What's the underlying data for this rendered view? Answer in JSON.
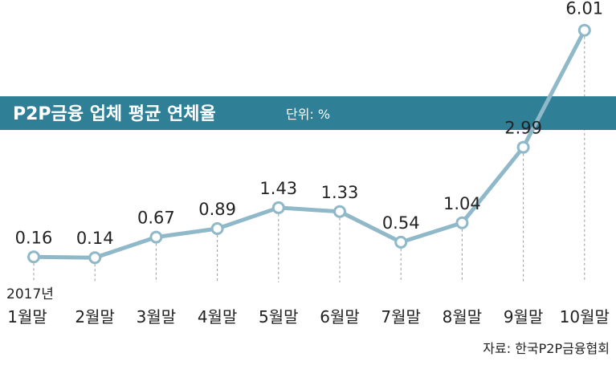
{
  "title": "P2P금융 업체 평균 연체율",
  "unit": "단위: %",
  "source": "자료: 한국P2P금융협회",
  "year_label": "2017년",
  "colors": {
    "title_bar": "#2f7f96",
    "line": "#8fb9c9",
    "marker_stroke": "#8fb9c9",
    "marker_fill": "#ffffff",
    "guide": "#9a9a9a"
  },
  "chart_data": {
    "type": "line",
    "title": "P2P금융 업체 평균 연체율",
    "unit": "%",
    "categories": [
      "1월말",
      "2월말",
      "3월말",
      "4월말",
      "5월말",
      "6월말",
      "7월말",
      "8월말",
      "9월말",
      "10월말"
    ],
    "series": [
      {
        "values": [
          0.16,
          0.14,
          0.67,
          0.89,
          1.43,
          1.33,
          0.54,
          1.04,
          2.99,
          6.01
        ]
      }
    ],
    "data_labels": [
      "0.16",
      "0.14",
      "0.67",
      "0.89",
      "1.43",
      "1.33",
      "0.54",
      "1.04",
      "2.99",
      "6.01"
    ],
    "grid": false,
    "legend": "none"
  }
}
